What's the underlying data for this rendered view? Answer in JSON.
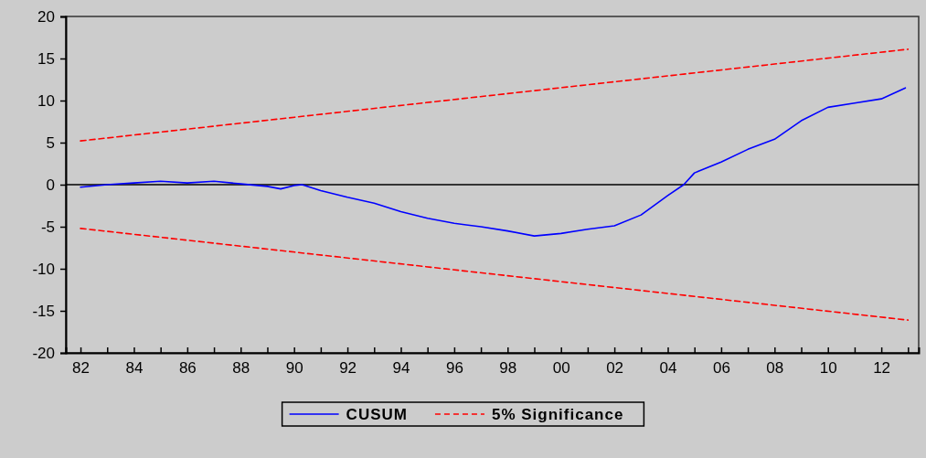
{
  "chart_data": {
    "type": "line",
    "xlim": [
      1981.45,
      2013.4
    ],
    "ylim": [
      -20,
      20
    ],
    "yticks": [
      -20,
      -15,
      -10,
      -5,
      0,
      5,
      10,
      15,
      20
    ],
    "xticks": [
      {
        "value": 1982,
        "label": "82"
      },
      {
        "value": 1983,
        "label": null
      },
      {
        "value": 1984,
        "label": "84"
      },
      {
        "value": 1985,
        "label": null
      },
      {
        "value": 1986,
        "label": "86"
      },
      {
        "value": 1987,
        "label": null
      },
      {
        "value": 1988,
        "label": "88"
      },
      {
        "value": 1989,
        "label": null
      },
      {
        "value": 1990,
        "label": "90"
      },
      {
        "value": 1991,
        "label": null
      },
      {
        "value": 1992,
        "label": "92"
      },
      {
        "value": 1993,
        "label": null
      },
      {
        "value": 1994,
        "label": "94"
      },
      {
        "value": 1995,
        "label": null
      },
      {
        "value": 1996,
        "label": "96"
      },
      {
        "value": 1997,
        "label": null
      },
      {
        "value": 1998,
        "label": "98"
      },
      {
        "value": 1999,
        "label": null
      },
      {
        "value": 2000,
        "label": "00"
      },
      {
        "value": 2001,
        "label": null
      },
      {
        "value": 2002,
        "label": "02"
      },
      {
        "value": 2003,
        "label": null
      },
      {
        "value": 2004,
        "label": "04"
      },
      {
        "value": 2005,
        "label": null
      },
      {
        "value": 2006,
        "label": "06"
      },
      {
        "value": 2007,
        "label": null
      },
      {
        "value": 2008,
        "label": "08"
      },
      {
        "value": 2009,
        "label": null
      },
      {
        "value": 2010,
        "label": "10"
      },
      {
        "value": 2011,
        "label": null
      },
      {
        "value": 2012,
        "label": "12"
      },
      {
        "value": 2013,
        "label": null
      }
    ],
    "grid": false,
    "legend": "bottom",
    "ref_lines": [
      {
        "axis": "y",
        "value": 0,
        "color": "#000000"
      }
    ],
    "series": [
      {
        "name": "CUSUM",
        "color": "#0000ff",
        "line_style": "solid",
        "x": [
          1982,
          1983,
          1984,
          1985,
          1986,
          1987,
          1988,
          1989,
          1989.5,
          1990,
          1990.3,
          1991,
          1992,
          1993,
          1994,
          1995,
          1996,
          1997,
          1998,
          1999,
          2000,
          2001,
          2002,
          2003,
          2004,
          2004.6,
          2005,
          2006,
          2007,
          2008,
          2009,
          2010,
          2011,
          2012,
          2012.9
        ],
        "values": [
          -0.3,
          0,
          0.2,
          0.4,
          0.2,
          0.4,
          0.1,
          -0.2,
          -0.5,
          -0.1,
          0,
          -0.7,
          -1.5,
          -2.2,
          -3.2,
          -4.0,
          -4.6,
          -5.0,
          -5.5,
          -6.1,
          -5.8,
          -5.3,
          -4.9,
          -3.6,
          -1.3,
          0,
          1.4,
          2.7,
          4.2,
          5.4,
          7.6,
          9.2,
          9.7,
          10.2,
          11.5
        ]
      },
      {
        "name": "5% Significance",
        "color": "#ff0000",
        "line_style": "dashed",
        "x": [
          1982,
          2013
        ],
        "values": [
          5.2,
          16.1
        ]
      },
      {
        "color": "#ff0000",
        "line_style": "dashed",
        "x": [
          1982,
          2013
        ],
        "values": [
          -5.2,
          -16.1
        ]
      }
    ]
  }
}
